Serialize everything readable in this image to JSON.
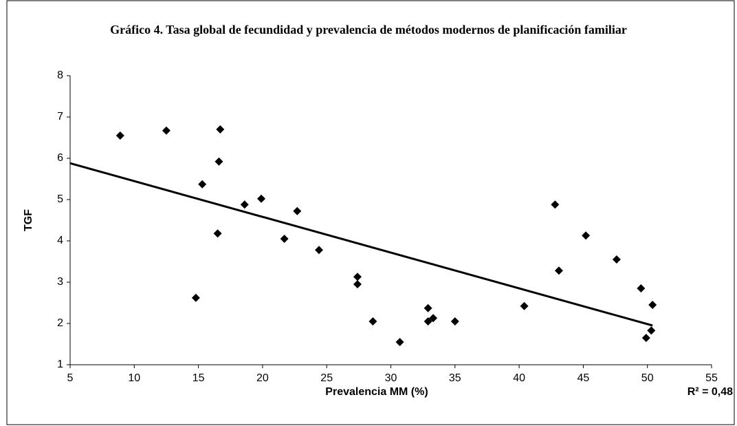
{
  "chart_data": {
    "type": "scatter",
    "title": "Gráfico 4. Tasa global de fecundidad y prevalencia de métodos modernos de planificación familiar",
    "x_label": "Prevalencia MM  (%)",
    "y_label": "TGF",
    "annotation": "R² = 0,48",
    "color": "#000000",
    "x": [
      8.9,
      12.5,
      16.7,
      16.6,
      15.3,
      18.6,
      19.9,
      22.7,
      16.5,
      21.7,
      24.4,
      14.8,
      27.4,
      27.4,
      28.6,
      30.7,
      32.9,
      32.9,
      33.3,
      35.0,
      40.4,
      42.8,
      43.1,
      45.2,
      47.6,
      49.5,
      50.4,
      49.9,
      50.3
    ],
    "y": [
      6.55,
      6.67,
      6.7,
      5.92,
      5.37,
      4.88,
      5.02,
      4.72,
      4.18,
      4.05,
      3.78,
      2.62,
      3.13,
      2.95,
      2.05,
      1.55,
      2.37,
      2.05,
      2.13,
      2.05,
      2.42,
      4.88,
      3.28,
      4.13,
      3.55,
      2.85,
      2.45,
      1.65,
      1.83
    ],
    "trendline": {
      "x": [
        5,
        50.4
      ],
      "y": [
        5.88,
        1.95
      ]
    },
    "xlim": [
      5,
      55
    ],
    "ylim": [
      1,
      8
    ],
    "xticks": [
      5,
      10,
      15,
      20,
      25,
      30,
      35,
      40,
      45,
      50,
      55
    ],
    "yticks": [
      1,
      2,
      3,
      4,
      5,
      6,
      7,
      8
    ]
  }
}
